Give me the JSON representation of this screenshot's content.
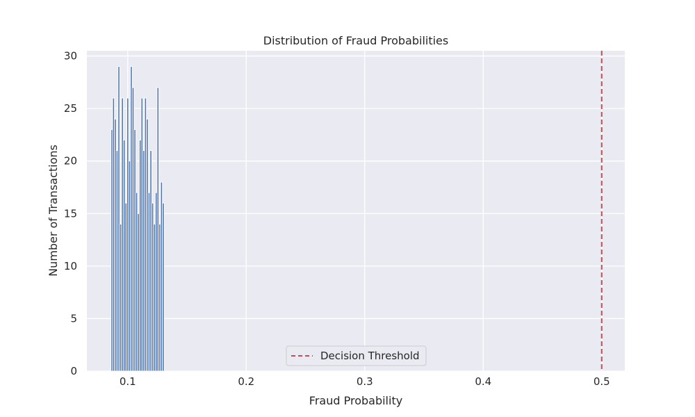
{
  "chart_data": {
    "type": "bar",
    "title": "Distribution of Fraud Probabilities",
    "xlabel": "Fraud Probability",
    "ylabel": "Number of Transactions",
    "xlim": [
      0.0655,
      0.5195
    ],
    "ylim": [
      0,
      30.5
    ],
    "xticks": [
      0.1,
      0.2,
      0.3,
      0.4,
      0.5
    ],
    "xtick_labels": [
      "0.1",
      "0.2",
      "0.3",
      "0.4",
      "0.5"
    ],
    "yticks": [
      0,
      5,
      10,
      15,
      20,
      25,
      30
    ],
    "ytick_labels": [
      "0",
      "5",
      "10",
      "15",
      "20",
      "25",
      "30"
    ],
    "grid": true,
    "bin_width": 0.0015,
    "bins": [
      {
        "x": 0.0866,
        "count": 23
      },
      {
        "x": 0.088,
        "count": 26
      },
      {
        "x": 0.0895,
        "count": 24
      },
      {
        "x": 0.091,
        "count": 21
      },
      {
        "x": 0.0925,
        "count": 29
      },
      {
        "x": 0.094,
        "count": 14
      },
      {
        "x": 0.0955,
        "count": 26
      },
      {
        "x": 0.097,
        "count": 22
      },
      {
        "x": 0.0985,
        "count": 16
      },
      {
        "x": 0.1,
        "count": 26
      },
      {
        "x": 0.1015,
        "count": 20
      },
      {
        "x": 0.103,
        "count": 29
      },
      {
        "x": 0.1045,
        "count": 27
      },
      {
        "x": 0.106,
        "count": 23
      },
      {
        "x": 0.1075,
        "count": 17
      },
      {
        "x": 0.109,
        "count": 15
      },
      {
        "x": 0.1105,
        "count": 22
      },
      {
        "x": 0.112,
        "count": 26
      },
      {
        "x": 0.1135,
        "count": 21
      },
      {
        "x": 0.115,
        "count": 26
      },
      {
        "x": 0.1165,
        "count": 24
      },
      {
        "x": 0.118,
        "count": 17
      },
      {
        "x": 0.1195,
        "count": 21
      },
      {
        "x": 0.121,
        "count": 16
      },
      {
        "x": 0.1225,
        "count": 14
      },
      {
        "x": 0.124,
        "count": 17
      },
      {
        "x": 0.1255,
        "count": 27
      },
      {
        "x": 0.127,
        "count": 14
      },
      {
        "x": 0.1285,
        "count": 18
      },
      {
        "x": 0.13,
        "count": 16
      }
    ],
    "threshold": {
      "x": 0.5,
      "label": "Decision Threshold",
      "color": "#c44e52"
    },
    "legend_position": "lower-center",
    "colors": {
      "plot_background": "#eaeaf2",
      "grid": "#ffffff",
      "bar_fill": "#4c72b0",
      "bar_edge": "#ffffff",
      "threshold": "#c44e52"
    }
  }
}
